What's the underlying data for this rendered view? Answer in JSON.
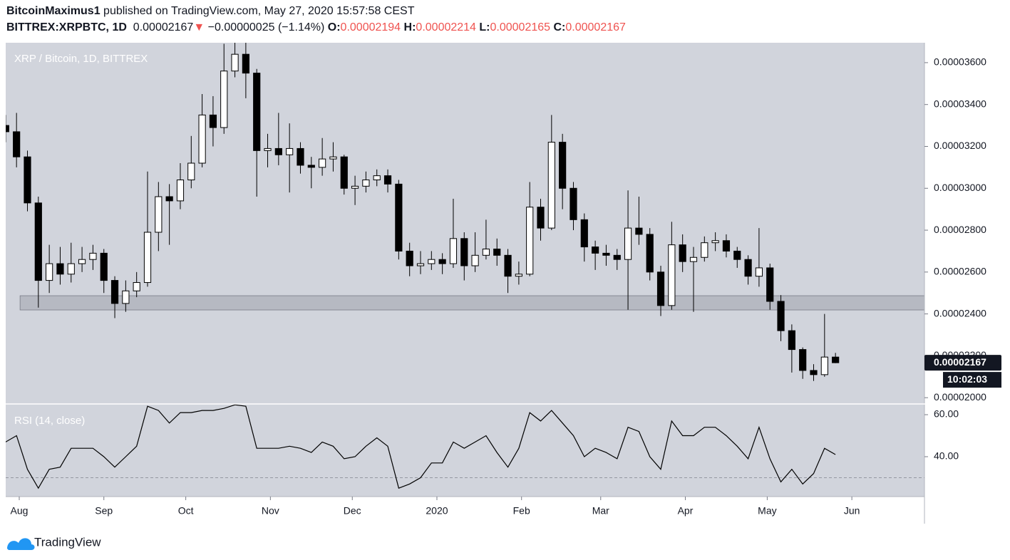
{
  "header": {
    "author": "BitcoinMaximus1",
    "published": "published on TradingView.com, May 27, 2020 15:57:58 CEST",
    "symbol": "BITTREX:XRPBTC, 1D",
    "last": "0.00002167",
    "arrow": "▼",
    "change": "−0.00000025 (−1.14%)",
    "o_label": "O:",
    "o": "0.00002194",
    "h_label": "H:",
    "h": "0.00002214",
    "l_label": "L:",
    "l": "0.00002165",
    "c_label": "C:",
    "c": "0.00002167"
  },
  "footer": {
    "brand": "TradingView"
  },
  "chart_data": [
    {
      "type": "candlestick",
      "title": "XRP / Bitcoin, 1D, BITTREX",
      "x": [
        -5,
        -1,
        3,
        7,
        11,
        15,
        19,
        23,
        27,
        31,
        35,
        39,
        43,
        47,
        51,
        55,
        59,
        63,
        67,
        71,
        75,
        79,
        83,
        87,
        91,
        95,
        99,
        103,
        107,
        111,
        115,
        119,
        123,
        127,
        131,
        135,
        139,
        143,
        147,
        151,
        155,
        159,
        163,
        167,
        171,
        175,
        179,
        183,
        187,
        191,
        195,
        199,
        203,
        207,
        211,
        215,
        219,
        223,
        227,
        231,
        235,
        239,
        243,
        247,
        251,
        255,
        259,
        263,
        267,
        271,
        275,
        279,
        283,
        287,
        291,
        295,
        299
      ],
      "open": [
        3.3e-05,
        3.27e-05,
        3.15e-05,
        2.93e-05,
        2.56e-05,
        2.64e-05,
        2.59e-05,
        2.64e-05,
        2.66e-05,
        2.69e-05,
        2.56e-05,
        2.45e-05,
        2.51e-05,
        2.55e-05,
        2.79e-05,
        2.96e-05,
        2.94e-05,
        3.04e-05,
        3.12e-05,
        3.35e-05,
        3.29e-05,
        3.56e-05,
        3.64e-05,
        3.55e-05,
        3.18e-05,
        3.19e-05,
        3.16e-05,
        3.19e-05,
        3.11e-05,
        3.1e-05,
        3.14e-05,
        3.15e-05,
        3e-05,
        3.01e-05,
        3.04e-05,
        3.06e-05,
        3.02e-05,
        2.7e-05,
        2.63e-05,
        2.64e-05,
        2.66e-05,
        2.64e-05,
        2.76e-05,
        2.63e-05,
        2.68e-05,
        2.71e-05,
        2.68e-05,
        2.58e-05,
        2.59e-05,
        2.91e-05,
        2.81e-05,
        3.22e-05,
        3e-05,
        2.85e-05,
        2.72e-05,
        2.69e-05,
        2.68e-05,
        2.66e-05,
        2.81e-05,
        2.78e-05,
        2.6e-05,
        2.44e-05,
        2.73e-05,
        2.65e-05,
        2.67e-05,
        2.74e-05,
        2.75e-05,
        2.7e-05,
        2.66e-05,
        2.58e-05,
        2.62e-05,
        2.46e-05,
        2.32e-05,
        2.23e-05,
        2.13e-05,
        2.11e-05,
        2.194e-05
      ],
      "high": [
        3.35e-05,
        3.36e-05,
        3.18e-05,
        2.96e-05,
        2.73e-05,
        2.72e-05,
        2.74e-05,
        2.72e-05,
        2.73e-05,
        2.71e-05,
        2.58e-05,
        2.56e-05,
        2.6e-05,
        3.08e-05,
        3.03e-05,
        3.02e-05,
        3.12e-05,
        3.25e-05,
        3.45e-05,
        3.44e-05,
        3.69e-05,
        3.72e-05,
        3.7e-05,
        3.57e-05,
        3.26e-05,
        3.36e-05,
        3.31e-05,
        3.22e-05,
        3.15e-05,
        3.24e-05,
        3.22e-05,
        3.16e-05,
        3.06e-05,
        3.08e-05,
        3.09e-05,
        3.09e-05,
        3.04e-05,
        2.74e-05,
        2.7e-05,
        2.7e-05,
        2.69e-05,
        2.95e-05,
        2.79e-05,
        2.79e-05,
        2.85e-05,
        2.76e-05,
        2.71e-05,
        2.65e-05,
        3.03e-05,
        2.95e-05,
        3.35e-05,
        3.26e-05,
        3.03e-05,
        2.88e-05,
        2.75e-05,
        2.73e-05,
        2.71e-05,
        2.99e-05,
        2.96e-05,
        2.81e-05,
        2.63e-05,
        2.84e-05,
        2.78e-05,
        2.72e-05,
        2.77e-05,
        2.79e-05,
        2.78e-05,
        2.72e-05,
        2.68e-05,
        2.81e-05,
        2.64e-05,
        2.49e-05,
        2.35e-05,
        2.24e-05,
        2.16e-05,
        2.4e-05,
        2.214e-05
      ],
      "low": [
        3.22e-05,
        3.1e-05,
        2.89e-05,
        2.43e-05,
        2.5e-05,
        2.54e-05,
        2.55e-05,
        2.6e-05,
        2.61e-05,
        2.5e-05,
        2.38e-05,
        2.41e-05,
        2.48e-05,
        2.53e-05,
        2.7e-05,
        2.73e-05,
        2.9e-05,
        3e-05,
        3.1e-05,
        3.2e-05,
        3.26e-05,
        3.53e-05,
        3.43e-05,
        2.96e-05,
        3.1e-05,
        3.11e-05,
        2.98e-05,
        3.07e-05,
        3e-05,
        3.06e-05,
        3.08e-05,
        2.97e-05,
        2.92e-05,
        2.98e-05,
        3.01e-05,
        2.98e-05,
        2.66e-05,
        2.58e-05,
        2.59e-05,
        2.61e-05,
        2.59e-05,
        2.62e-05,
        2.56e-05,
        2.6e-05,
        2.66e-05,
        2.63e-05,
        2.5e-05,
        2.54e-05,
        2.58e-05,
        2.75e-05,
        2.8e-05,
        2.9e-05,
        2.8e-05,
        2.65e-05,
        2.61e-05,
        2.63e-05,
        2.61e-05,
        2.42e-05,
        2.73e-05,
        2.56e-05,
        2.39e-05,
        2.42e-05,
        2.6e-05,
        2.41e-05,
        2.65e-05,
        2.7e-05,
        2.67e-05,
        2.62e-05,
        2.54e-05,
        2.53e-05,
        2.42e-05,
        2.27e-05,
        2.12e-05,
        2.09e-05,
        2.08e-05,
        2.1e-05,
        2.165e-05
      ],
      "close": [
        3.27e-05,
        3.15e-05,
        2.93e-05,
        2.56e-05,
        2.64e-05,
        2.59e-05,
        2.64e-05,
        2.66e-05,
        2.69e-05,
        2.56e-05,
        2.45e-05,
        2.51e-05,
        2.55e-05,
        2.79e-05,
        2.96e-05,
        2.94e-05,
        3.04e-05,
        3.12e-05,
        3.35e-05,
        3.29e-05,
        3.56e-05,
        3.64e-05,
        3.55e-05,
        3.18e-05,
        3.19e-05,
        3.16e-05,
        3.19e-05,
        3.11e-05,
        3.1e-05,
        3.14e-05,
        3.15e-05,
        3e-05,
        3.01e-05,
        3.04e-05,
        3.06e-05,
        3.02e-05,
        2.7e-05,
        2.63e-05,
        2.64e-05,
        2.66e-05,
        2.64e-05,
        2.76e-05,
        2.63e-05,
        2.68e-05,
        2.71e-05,
        2.68e-05,
        2.58e-05,
        2.59e-05,
        2.91e-05,
        2.81e-05,
        3.22e-05,
        3e-05,
        2.85e-05,
        2.72e-05,
        2.69e-05,
        2.68e-05,
        2.66e-05,
        2.81e-05,
        2.78e-05,
        2.6e-05,
        2.44e-05,
        2.73e-05,
        2.65e-05,
        2.67e-05,
        2.74e-05,
        2.75e-05,
        2.7e-05,
        2.66e-05,
        2.58e-05,
        2.62e-05,
        2.46e-05,
        2.32e-05,
        2.23e-05,
        2.13e-05,
        2.11e-05,
        2.194e-05,
        2.167e-05
      ],
      "up_color": "#ffffff",
      "down_color": "#000000",
      "wick_color": "#000000",
      "background": "#d1d4dc",
      "xlim": [
        -4.96,
        331.6
      ],
      "ylim": [
        1.97e-05,
        3.695e-05
      ],
      "yticks": [
        {
          "value": 2e-05,
          "label": "0.00002000"
        },
        {
          "value": 2.2e-05,
          "label": "0.00002200"
        },
        {
          "value": 2.4e-05,
          "label": "0.00002400"
        },
        {
          "value": 2.6e-05,
          "label": "0.00002600"
        },
        {
          "value": 2.8e-05,
          "label": "0.00002800"
        },
        {
          "value": 3e-05,
          "label": "0.00003000"
        },
        {
          "value": 3.2e-05,
          "label": "0.00003200"
        },
        {
          "value": 3.4e-05,
          "label": "0.00003400"
        },
        {
          "value": 3.6e-05,
          "label": "0.00003600"
        }
      ],
      "xticks": [
        {
          "value": 0,
          "label": "Aug"
        },
        {
          "value": 31,
          "label": "Sep"
        },
        {
          "value": 61,
          "label": "Oct"
        },
        {
          "value": 92,
          "label": "Nov"
        },
        {
          "value": 122,
          "label": "Dec"
        },
        {
          "value": 153,
          "label": "2020"
        },
        {
          "value": 184,
          "label": "Feb"
        },
        {
          "value": 213,
          "label": "Mar"
        },
        {
          "value": 244,
          "label": "Apr"
        },
        {
          "value": 274,
          "label": "May"
        },
        {
          "value": 305,
          "label": "Jun"
        }
      ],
      "price_marker": {
        "value": 2.167e-05,
        "label": "0.00002167"
      },
      "countdown": "10:02:03",
      "zone": {
        "low": 2.419e-05,
        "high": 2.487e-05,
        "start": 0.3
      }
    },
    {
      "type": "line",
      "title": "RSI (14, close)",
      "color": "#000000",
      "x": [
        -5,
        -1,
        3,
        7,
        11,
        15,
        19,
        23,
        27,
        31,
        35,
        39,
        43,
        47,
        51,
        55,
        59,
        63,
        67,
        71,
        75,
        79,
        83,
        87,
        91,
        95,
        99,
        103,
        107,
        111,
        115,
        119,
        123,
        127,
        131,
        135,
        139,
        143,
        147,
        151,
        155,
        159,
        163,
        167,
        171,
        175,
        179,
        183,
        187,
        191,
        195,
        199,
        203,
        207,
        211,
        215,
        219,
        223,
        227,
        231,
        235,
        239,
        243,
        247,
        251,
        255,
        259,
        263,
        267,
        271,
        275,
        279,
        283,
        287,
        291,
        295,
        299
      ],
      "values": [
        47,
        50,
        34,
        25,
        34,
        35,
        44,
        44,
        44,
        40,
        35,
        40,
        45,
        64,
        62,
        56,
        61,
        61,
        62,
        62,
        63,
        64.7,
        64,
        44,
        44,
        44,
        45,
        44,
        42,
        47,
        45,
        39,
        40,
        45,
        49,
        45,
        25,
        27,
        30,
        37,
        37,
        47,
        44,
        47,
        50,
        42,
        35,
        44,
        61,
        57,
        62,
        56,
        50,
        40,
        44,
        42,
        39,
        54,
        52,
        40,
        34,
        57,
        50,
        50,
        54,
        54,
        50,
        45,
        39,
        54,
        39,
        28,
        34,
        27,
        32,
        44,
        41
      ],
      "xlim": [
        -4.96,
        331.6
      ],
      "ylim": [
        21,
        65.1
      ],
      "yticks": [
        {
          "value": 40,
          "label": "40.00"
        },
        {
          "value": 60,
          "label": "60.00"
        }
      ],
      "level": 30
    }
  ]
}
